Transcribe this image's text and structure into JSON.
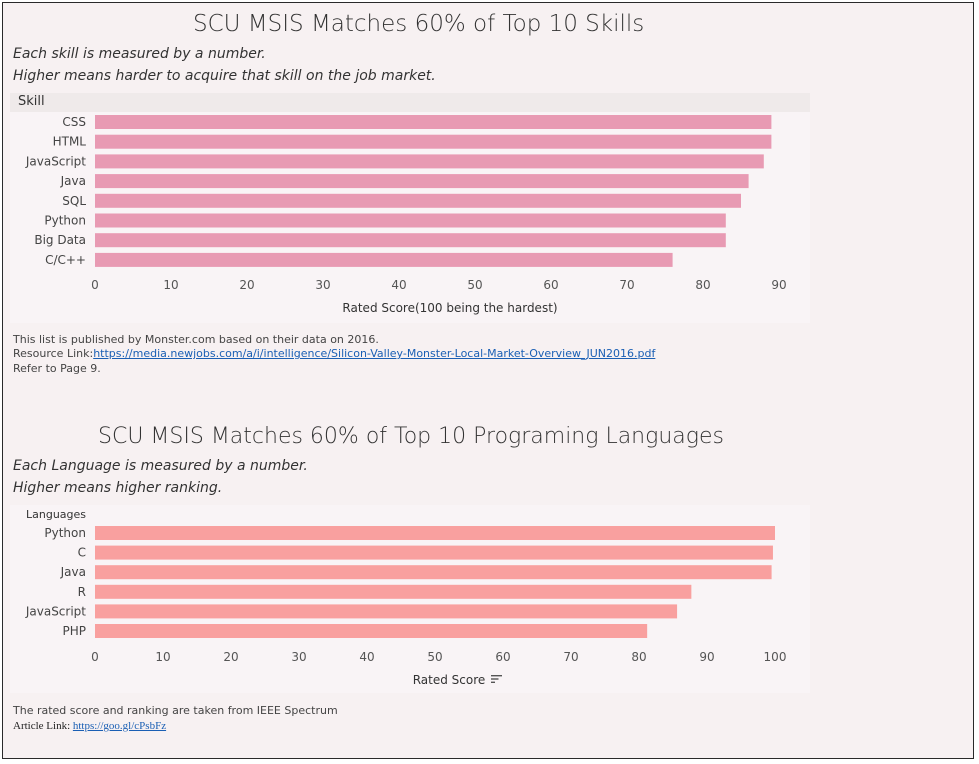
{
  "chart_data": [
    {
      "type": "bar",
      "orientation": "horizontal",
      "title": "SCU MSIS Matches 60% of Top 10 Skills",
      "subtitle_lines": [
        "Each skill is measured by a number.",
        "Higher means harder to acquire that skill on the job market."
      ],
      "category_header": "Skill",
      "categories": [
        "CSS",
        "HTML",
        "JavaScript",
        "Java",
        "SQL",
        "Python",
        "Big Data",
        "C/C++"
      ],
      "values": [
        89,
        89,
        88,
        86,
        85,
        83,
        83,
        76
      ],
      "xlabel": "Rated Score(100 being the hardest)",
      "xticks": [
        0,
        10,
        20,
        30,
        40,
        50,
        60,
        70,
        80,
        90
      ],
      "xlim": [
        0,
        90
      ],
      "bar_color": "#e89ab3"
    },
    {
      "type": "bar",
      "orientation": "horizontal",
      "title": "SCU MSIS Matches 60% of Top 10 Programing Languages",
      "subtitle_lines": [
        "Each Language is measured by a number.",
        "Higher means  higher ranking."
      ],
      "category_header": "Languages",
      "categories": [
        "Python",
        "C",
        "Java",
        "R",
        "JavaScript",
        "PHP"
      ],
      "values": [
        100,
        99.7,
        99.5,
        87.7,
        85.6,
        81.2
      ],
      "xlabel": "Rated Score",
      "xticks": [
        0,
        10,
        20,
        30,
        40,
        50,
        60,
        70,
        80,
        90,
        100
      ],
      "xlim": [
        0,
        100
      ],
      "bar_color": "#f9a09f"
    }
  ],
  "notes1": {
    "line1": "This list is published by Monster.com  based on their data on 2016.",
    "link_prefix": "Resource Link:",
    "link_text": "https://media.newjobs.com/a/i/intelligence/Silicon-Valley-Monster-Local-Market-Overview_JUN2016.pdf",
    "line3": "Refer to Page 9."
  },
  "notes2": {
    "line1": "The rated score and ranking are taken from IEEE Spectrum",
    "link_prefix": "Article Link: ",
    "link_text": "https://goo.gl/cPsbFz"
  },
  "sort_icon": "sort-descending-icon"
}
